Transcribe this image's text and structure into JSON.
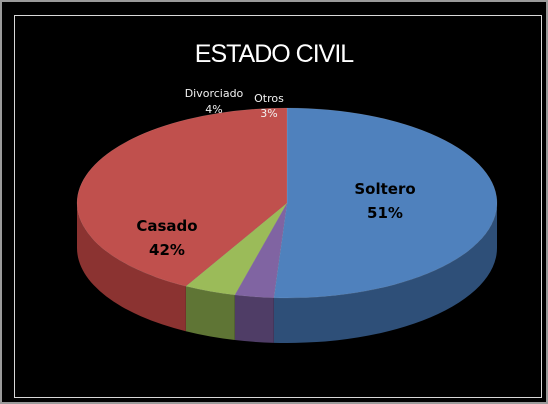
{
  "chart_data": {
    "type": "pie",
    "title": "ESTADO CIVIL",
    "three_d": true,
    "slices": [
      {
        "label": "Soltero",
        "value": 51,
        "display": "51%",
        "color": "#4f81bd",
        "side_color": "#2e4f78"
      },
      {
        "label": "Otros",
        "value": 3,
        "display": "3%",
        "color": "#8064a2",
        "side_color": "#4f3d66"
      },
      {
        "label": "Divorciado",
        "value": 4,
        "display": "4%",
        "color": "#9bbb59",
        "side_color": "#5f7535"
      },
      {
        "label": "Casado",
        "value": 42,
        "display": "42%",
        "color": "#c0504d",
        "side_color": "#8b3331"
      }
    ],
    "background": "#000000"
  }
}
